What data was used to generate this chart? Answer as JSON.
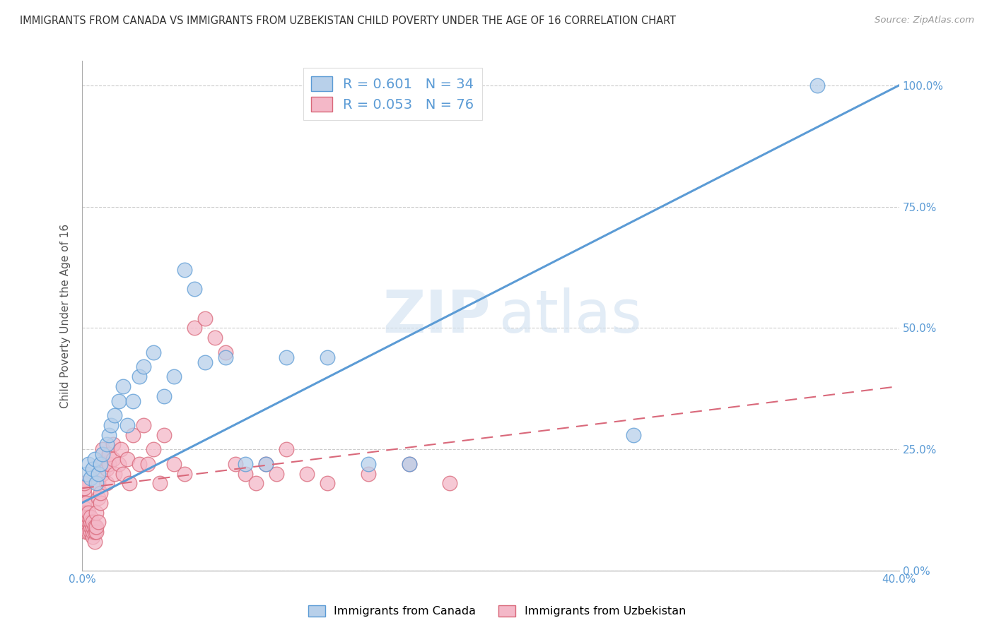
{
  "title": "IMMIGRANTS FROM CANADA VS IMMIGRANTS FROM UZBEKISTAN CHILD POVERTY UNDER THE AGE OF 16 CORRELATION CHART",
  "source": "Source: ZipAtlas.com",
  "ylabel_label": "Child Poverty Under the Age of 16",
  "canada_R": 0.601,
  "canada_N": 34,
  "uzbekistan_R": 0.053,
  "uzbekistan_N": 76,
  "canada_color": "#b8d0ea",
  "canada_line_color": "#5b9bd5",
  "uzbekistan_color": "#f4b8c8",
  "uzbekistan_line_color": "#d9687a",
  "watermark_zip": "ZIP",
  "watermark_atlas": "atlas",
  "xlim": [
    0.0,
    0.4
  ],
  "ylim": [
    0.0,
    1.05
  ],
  "xlabel_ticks": [
    0.0,
    0.1,
    0.2,
    0.3,
    0.4
  ],
  "xlabel_labels": [
    "0.0%",
    "",
    "",
    "",
    "40.0%"
  ],
  "ylabel_ticks": [
    0.0,
    0.25,
    0.5,
    0.75,
    1.0
  ],
  "ylabel_labels": [
    "0.0%",
    "25.0%",
    "50.0%",
    "75.0%",
    "100.0%"
  ],
  "canada_points_x": [
    0.002,
    0.003,
    0.004,
    0.005,
    0.006,
    0.007,
    0.008,
    0.009,
    0.01,
    0.012,
    0.013,
    0.014,
    0.016,
    0.018,
    0.02,
    0.022,
    0.025,
    0.028,
    0.03,
    0.035,
    0.04,
    0.045,
    0.05,
    0.055,
    0.06,
    0.07,
    0.08,
    0.09,
    0.1,
    0.12,
    0.14,
    0.16,
    0.27,
    0.36
  ],
  "canada_points_y": [
    0.2,
    0.22,
    0.19,
    0.21,
    0.23,
    0.18,
    0.2,
    0.22,
    0.24,
    0.26,
    0.28,
    0.3,
    0.32,
    0.35,
    0.38,
    0.3,
    0.35,
    0.4,
    0.42,
    0.45,
    0.36,
    0.4,
    0.62,
    0.58,
    0.43,
    0.44,
    0.22,
    0.22,
    0.44,
    0.44,
    0.22,
    0.22,
    0.28,
    1.0
  ],
  "uzbekistan_points_x": [
    0.001,
    0.001,
    0.001,
    0.001,
    0.001,
    0.001,
    0.001,
    0.002,
    0.002,
    0.002,
    0.002,
    0.002,
    0.002,
    0.003,
    0.003,
    0.003,
    0.003,
    0.003,
    0.004,
    0.004,
    0.004,
    0.004,
    0.005,
    0.005,
    0.005,
    0.005,
    0.006,
    0.006,
    0.006,
    0.007,
    0.007,
    0.007,
    0.008,
    0.008,
    0.008,
    0.009,
    0.009,
    0.01,
    0.01,
    0.01,
    0.012,
    0.012,
    0.013,
    0.013,
    0.015,
    0.015,
    0.016,
    0.018,
    0.019,
    0.02,
    0.022,
    0.023,
    0.025,
    0.028,
    0.03,
    0.032,
    0.035,
    0.038,
    0.04,
    0.045,
    0.05,
    0.055,
    0.06,
    0.065,
    0.07,
    0.075,
    0.08,
    0.085,
    0.09,
    0.095,
    0.1,
    0.11,
    0.12,
    0.14,
    0.16,
    0.18
  ],
  "uzbekistan_points_y": [
    0.16,
    0.17,
    0.18,
    0.14,
    0.13,
    0.12,
    0.1,
    0.1,
    0.11,
    0.12,
    0.14,
    0.08,
    0.09,
    0.09,
    0.1,
    0.11,
    0.12,
    0.08,
    0.08,
    0.09,
    0.1,
    0.11,
    0.07,
    0.08,
    0.09,
    0.1,
    0.06,
    0.08,
    0.09,
    0.08,
    0.09,
    0.12,
    0.1,
    0.15,
    0.18,
    0.14,
    0.16,
    0.2,
    0.22,
    0.25,
    0.18,
    0.21,
    0.22,
    0.24,
    0.23,
    0.26,
    0.2,
    0.22,
    0.25,
    0.2,
    0.23,
    0.18,
    0.28,
    0.22,
    0.3,
    0.22,
    0.25,
    0.18,
    0.28,
    0.22,
    0.2,
    0.5,
    0.52,
    0.48,
    0.45,
    0.22,
    0.2,
    0.18,
    0.22,
    0.2,
    0.25,
    0.2,
    0.18,
    0.2,
    0.22,
    0.18
  ]
}
